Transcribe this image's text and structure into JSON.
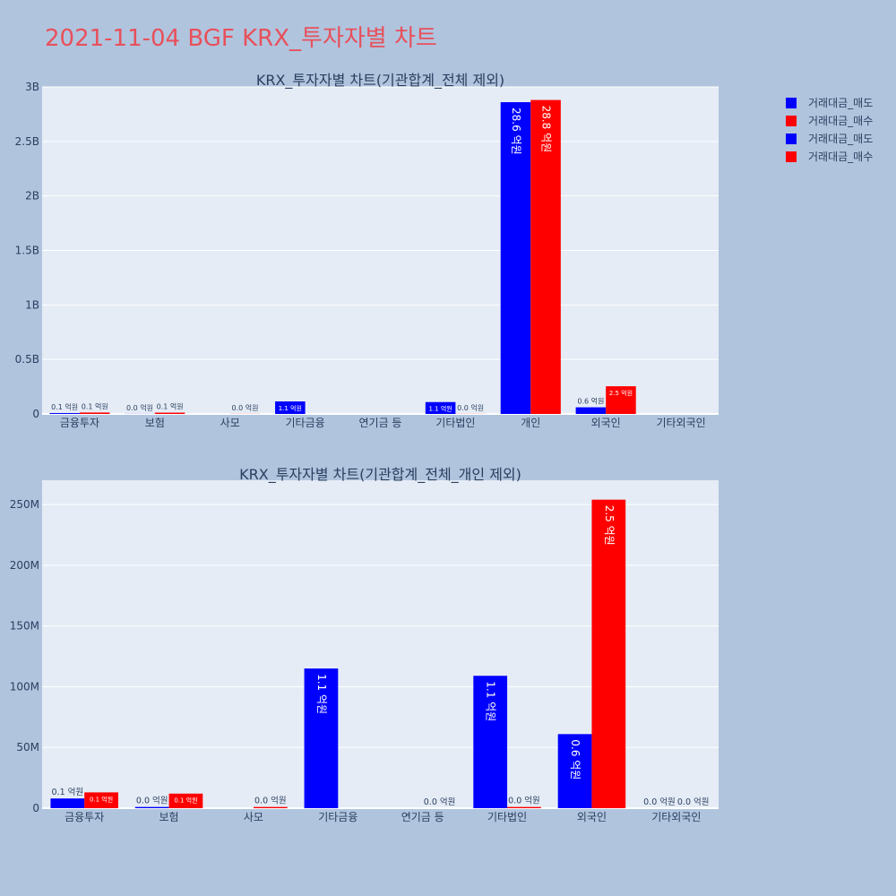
{
  "page_title": "2021-11-04 BGF KRX_투자자별 차트",
  "colors": {
    "sell": "#0000ff",
    "buy": "#ff0000",
    "plot_bg": "#e5ecf6",
    "page_bg": "#b0c4de",
    "title": "#e8505b"
  },
  "legend": [
    {
      "label": "거래대금_매도",
      "color": "#0000ff"
    },
    {
      "label": "거래대금_매수",
      "color": "#ff0000"
    },
    {
      "label": "거래대금_매도",
      "color": "#0000ff"
    },
    {
      "label": "거래대금_매수",
      "color": "#ff0000"
    }
  ],
  "chart_data": [
    {
      "type": "bar",
      "title": "KRX_투자자별 차트(기관합계_전체 제외)",
      "categories": [
        "금융투자",
        "보험",
        "사모",
        "기타금융",
        "연기금 등",
        "기타법인",
        "개인",
        "외국인",
        "기타외국인"
      ],
      "ylim": [
        0,
        3000000000
      ],
      "yticks": [
        0,
        500000000,
        1000000000,
        1500000000,
        2000000000,
        2500000000,
        3000000000
      ],
      "ytick_labels": [
        "0",
        "0.5B",
        "1B",
        "1.5B",
        "2B",
        "2.5B",
        "3B"
      ],
      "series": [
        {
          "name": "거래대금_매도",
          "color": "#0000ff",
          "values": [
            8000000,
            1000000,
            null,
            115000000,
            null,
            109000000,
            2860000000,
            61000000,
            null
          ],
          "labels": [
            "0.1 억원",
            "0.0 억원",
            null,
            "1.1 억원",
            null,
            "1.1 억원",
            "28.6 억원",
            "0.6 억원",
            null
          ]
        },
        {
          "name": "거래대금_매수",
          "color": "#ff0000",
          "values": [
            13000000,
            12000000,
            1000000,
            null,
            null,
            1000000,
            2880000000,
            254000000,
            null
          ],
          "labels": [
            "0.1 억원",
            "0.1 억원",
            "0.0 억원",
            null,
            null,
            "0.0 억원",
            "28.8 억원",
            "2.5 억원",
            null
          ]
        }
      ]
    },
    {
      "type": "bar",
      "title": "KRX_투자자별 차트(기관합계_전체_개인 제외)",
      "categories": [
        "금융투자",
        "보험",
        "사모",
        "기타금융",
        "연기금 등",
        "기타법인",
        "외국인",
        "기타외국인"
      ],
      "ylim": [
        0,
        270000000
      ],
      "yticks": [
        0,
        50000000,
        100000000,
        150000000,
        200000000,
        250000000
      ],
      "ytick_labels": [
        "0",
        "50M",
        "100M",
        "150M",
        "200M",
        "250M"
      ],
      "series": [
        {
          "name": "거래대금_매도",
          "color": "#0000ff",
          "values": [
            8000000,
            1000000,
            null,
            115000000,
            null,
            109000000,
            61000000,
            0
          ],
          "labels": [
            "0.1 억원",
            "0.0 억원",
            null,
            "1.1 억원",
            null,
            "1.1 억원",
            "0.6 억원",
            "0.0 억원"
          ]
        },
        {
          "name": "거래대금_매수",
          "color": "#ff0000",
          "values": [
            13000000,
            12000000,
            1000000,
            null,
            0,
            1000000,
            254000000,
            0
          ],
          "labels": [
            "0.1 억원",
            "0.1 억원",
            "0.0 억원",
            null,
            "0.0 억원",
            "0.0 억원",
            "2.5 억원",
            "0.0 억원"
          ]
        }
      ]
    }
  ]
}
